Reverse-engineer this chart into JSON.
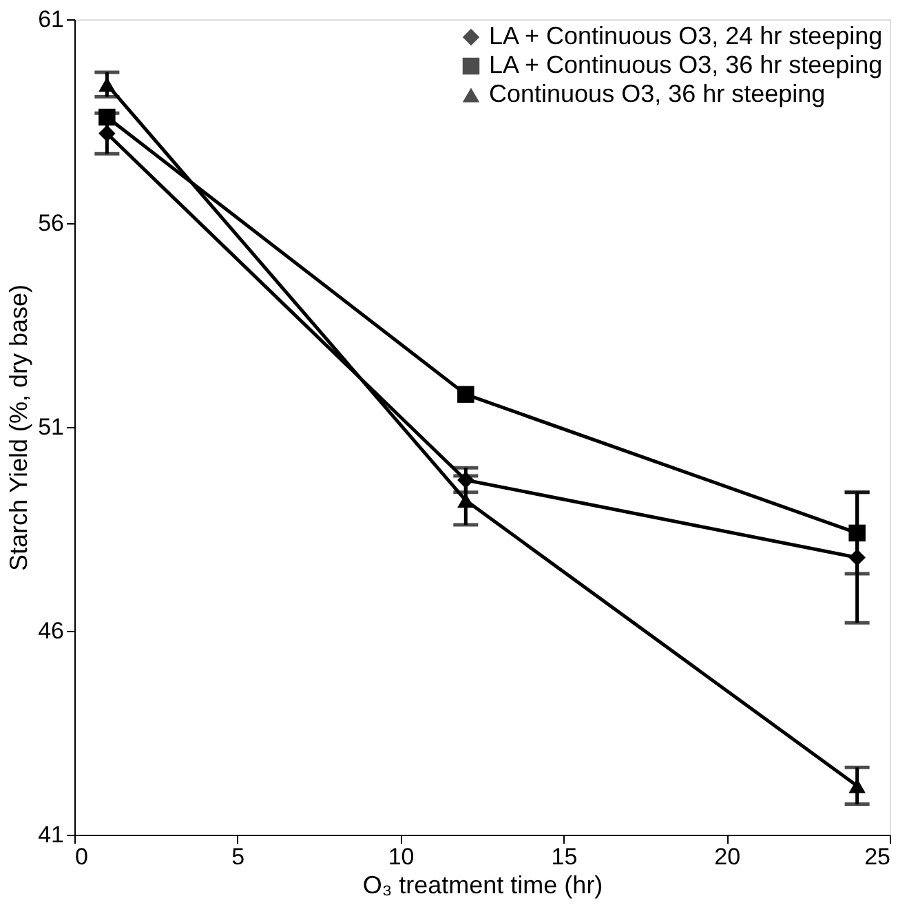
{
  "chart_data": {
    "type": "line",
    "xlabel": "O₃ treatment time (hr)",
    "ylabel": "Starch Yield (%, dry base)",
    "xlim": [
      0,
      25
    ],
    "xticks": [
      0,
      5,
      10,
      15,
      20,
      25
    ],
    "ylim": [
      41,
      61
    ],
    "yticks": [
      41,
      46,
      51,
      56,
      61
    ],
    "grid": false,
    "legend": "top right",
    "x": [
      1,
      12,
      24
    ],
    "series": [
      {
        "name": "LA + Continuous O3, 24 hr steeping",
        "color": "#000000",
        "marker": "diamond",
        "line_style": "solid",
        "values": [
          58.2,
          49.7,
          47.8
        ],
        "errors": [
          0.5,
          0.3,
          1.6
        ]
      },
      {
        "name": "LA + Continuous O3, 36 hr steeping",
        "color": "#000000",
        "marker": "square",
        "line_style": "solid",
        "values": [
          58.6,
          51.8,
          48.4
        ],
        "errors": [
          null,
          null,
          1.0
        ]
      },
      {
        "name": "Continuous O3, 36 hr steeping",
        "color": "#000000",
        "marker": "triangle",
        "line_style": "solid",
        "values": [
          59.4,
          49.2,
          42.2
        ],
        "errors": [
          0.3,
          0.6,
          0.45
        ]
      }
    ]
  }
}
